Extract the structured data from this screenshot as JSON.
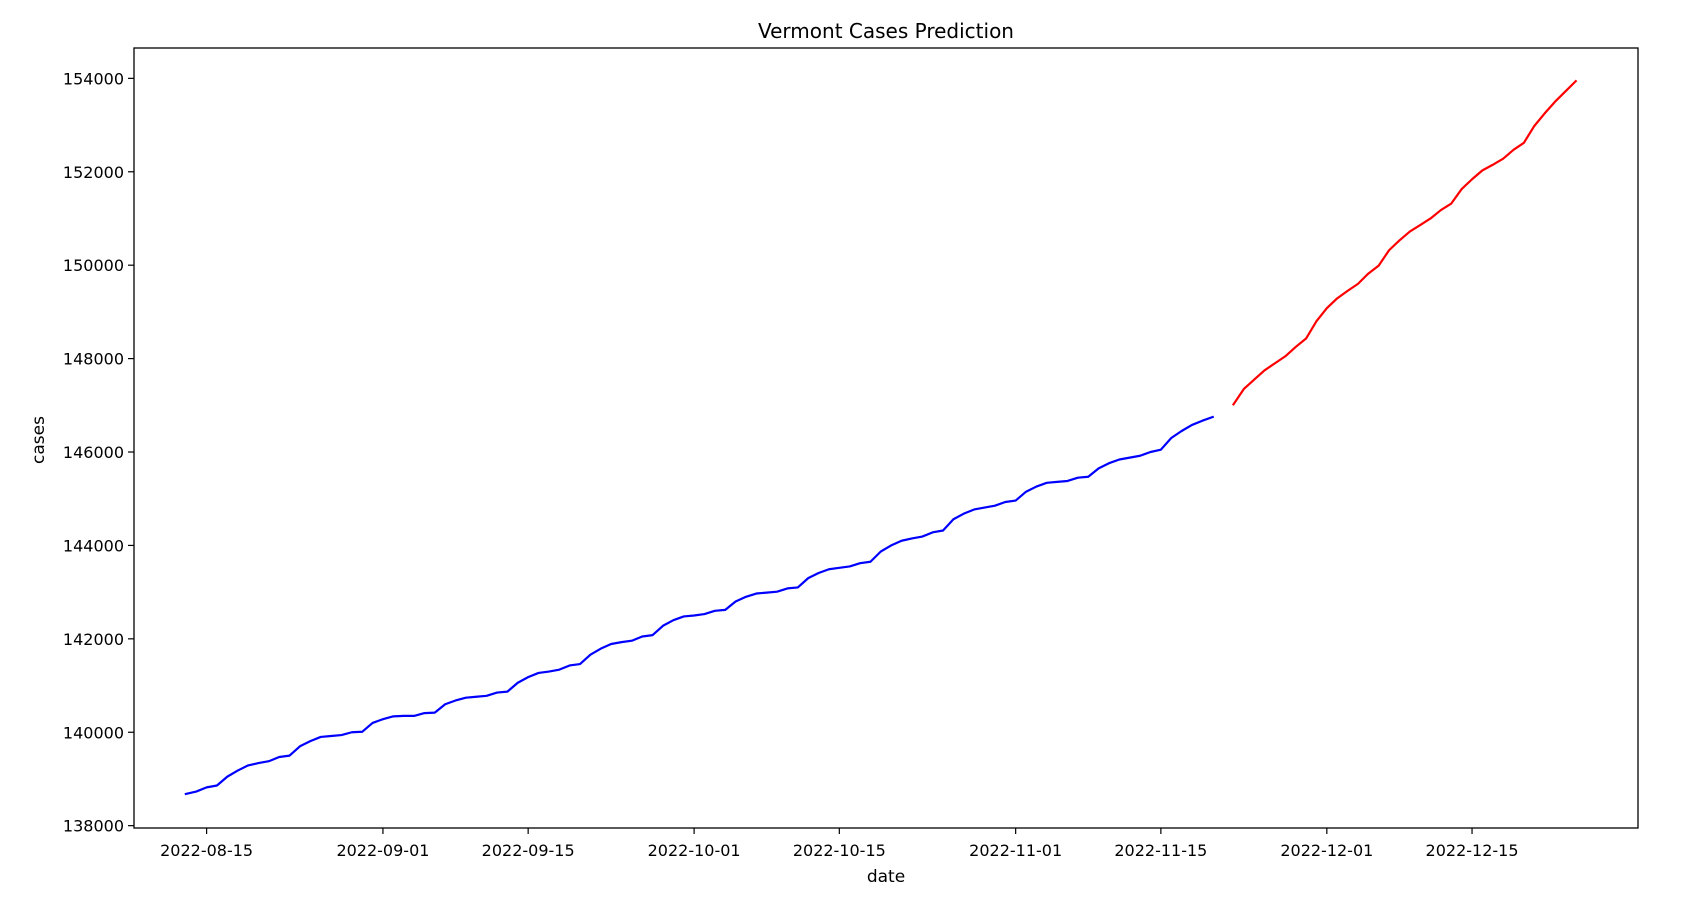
{
  "chart_data": {
    "type": "line",
    "title": "Vermont Cases Prediction",
    "xlabel": "date",
    "ylabel": "cases",
    "x_axis_type": "date",
    "xlim": [
      "2022-08-08",
      "2022-12-31"
    ],
    "ylim": [
      137950,
      154650
    ],
    "x_ticks": [
      "2022-08-15",
      "2022-09-01",
      "2022-09-15",
      "2022-10-01",
      "2022-10-15",
      "2022-11-01",
      "2022-11-15",
      "2022-12-01",
      "2022-12-15"
    ],
    "y_ticks": [
      138000,
      140000,
      142000,
      144000,
      146000,
      148000,
      150000,
      152000,
      154000
    ],
    "grid": false,
    "series": [
      {
        "color": "#0000ff",
        "x": [
          "2022-08-13",
          "2022-08-14",
          "2022-08-15",
          "2022-08-16",
          "2022-08-17",
          "2022-08-18",
          "2022-08-19",
          "2022-08-20",
          "2022-08-21",
          "2022-08-22",
          "2022-08-23",
          "2022-08-24",
          "2022-08-25",
          "2022-08-26",
          "2022-08-27",
          "2022-08-28",
          "2022-08-29",
          "2022-08-30",
          "2022-08-31",
          "2022-09-01",
          "2022-09-02",
          "2022-09-03",
          "2022-09-04",
          "2022-09-05",
          "2022-09-06",
          "2022-09-07",
          "2022-09-08",
          "2022-09-09",
          "2022-09-10",
          "2022-09-11",
          "2022-09-12",
          "2022-09-13",
          "2022-09-14",
          "2022-09-15",
          "2022-09-16",
          "2022-09-17",
          "2022-09-18",
          "2022-09-19",
          "2022-09-20",
          "2022-09-21",
          "2022-09-22",
          "2022-09-23",
          "2022-09-24",
          "2022-09-25",
          "2022-09-26",
          "2022-09-27",
          "2022-09-28",
          "2022-09-29",
          "2022-09-30",
          "2022-10-01",
          "2022-10-02",
          "2022-10-03",
          "2022-10-04",
          "2022-10-05",
          "2022-10-06",
          "2022-10-07",
          "2022-10-08",
          "2022-10-09",
          "2022-10-10",
          "2022-10-11",
          "2022-10-12",
          "2022-10-13",
          "2022-10-14",
          "2022-10-15",
          "2022-10-16",
          "2022-10-17",
          "2022-10-18",
          "2022-10-19",
          "2022-10-20",
          "2022-10-21",
          "2022-10-22",
          "2022-10-23",
          "2022-10-24",
          "2022-10-25",
          "2022-10-26",
          "2022-10-27",
          "2022-10-28",
          "2022-10-29",
          "2022-10-30",
          "2022-10-31",
          "2022-11-01",
          "2022-11-02",
          "2022-11-03",
          "2022-11-04",
          "2022-11-05",
          "2022-11-06",
          "2022-11-07",
          "2022-11-08",
          "2022-11-09",
          "2022-11-10",
          "2022-11-11",
          "2022-11-12",
          "2022-11-13",
          "2022-11-14",
          "2022-11-15",
          "2022-11-16",
          "2022-11-17",
          "2022-11-18",
          "2022-11-19",
          "2022-11-20"
        ],
        "y": [
          138680,
          138730,
          138820,
          138860,
          139050,
          139180,
          139290,
          139340,
          139380,
          139470,
          139500,
          139700,
          139810,
          139900,
          139920,
          139940,
          140000,
          140010,
          140200,
          140280,
          140340,
          140350,
          140350,
          140410,
          140420,
          140600,
          140680,
          140740,
          140760,
          140780,
          140850,
          140870,
          141060,
          141180,
          141270,
          141300,
          141340,
          141430,
          141460,
          141660,
          141790,
          141890,
          141930,
          141960,
          142050,
          142080,
          142280,
          142400,
          142480,
          142500,
          142530,
          142600,
          142620,
          142800,
          142900,
          142970,
          142990,
          143010,
          143080,
          143100,
          143300,
          143410,
          143490,
          143520,
          143550,
          143620,
          143650,
          143870,
          144000,
          144100,
          144150,
          144190,
          144280,
          144320,
          144560,
          144680,
          144770,
          144810,
          144850,
          144930,
          144960,
          145150,
          145260,
          145340,
          145360,
          145380,
          145450,
          145470,
          145650,
          145760,
          145840,
          145880,
          145920,
          146000,
          146050,
          146300,
          146450,
          146580,
          146670,
          146750
        ]
      },
      {
        "color": "#ff0000",
        "x": [
          "2022-11-22",
          "2022-11-23",
          "2022-11-24",
          "2022-11-25",
          "2022-11-26",
          "2022-11-27",
          "2022-11-28",
          "2022-11-29",
          "2022-11-30",
          "2022-12-01",
          "2022-12-02",
          "2022-12-03",
          "2022-12-04",
          "2022-12-05",
          "2022-12-06",
          "2022-12-07",
          "2022-12-08",
          "2022-12-09",
          "2022-12-10",
          "2022-12-11",
          "2022-12-12",
          "2022-12-13",
          "2022-12-14",
          "2022-12-15",
          "2022-12-16",
          "2022-12-17",
          "2022-12-18",
          "2022-12-19",
          "2022-12-20",
          "2022-12-21",
          "2022-12-22",
          "2022-12-23",
          "2022-12-24",
          "2022-12-25"
        ],
        "y": [
          147020,
          147350,
          147550,
          147750,
          147900,
          148050,
          148250,
          148430,
          148800,
          149080,
          149290,
          149450,
          149600,
          149820,
          149990,
          150320,
          150530,
          150720,
          150860,
          151000,
          151180,
          151320,
          151630,
          151840,
          152030,
          152150,
          152280,
          152470,
          152620,
          152980,
          153250,
          153500,
          153720,
          153940
        ]
      }
    ]
  }
}
